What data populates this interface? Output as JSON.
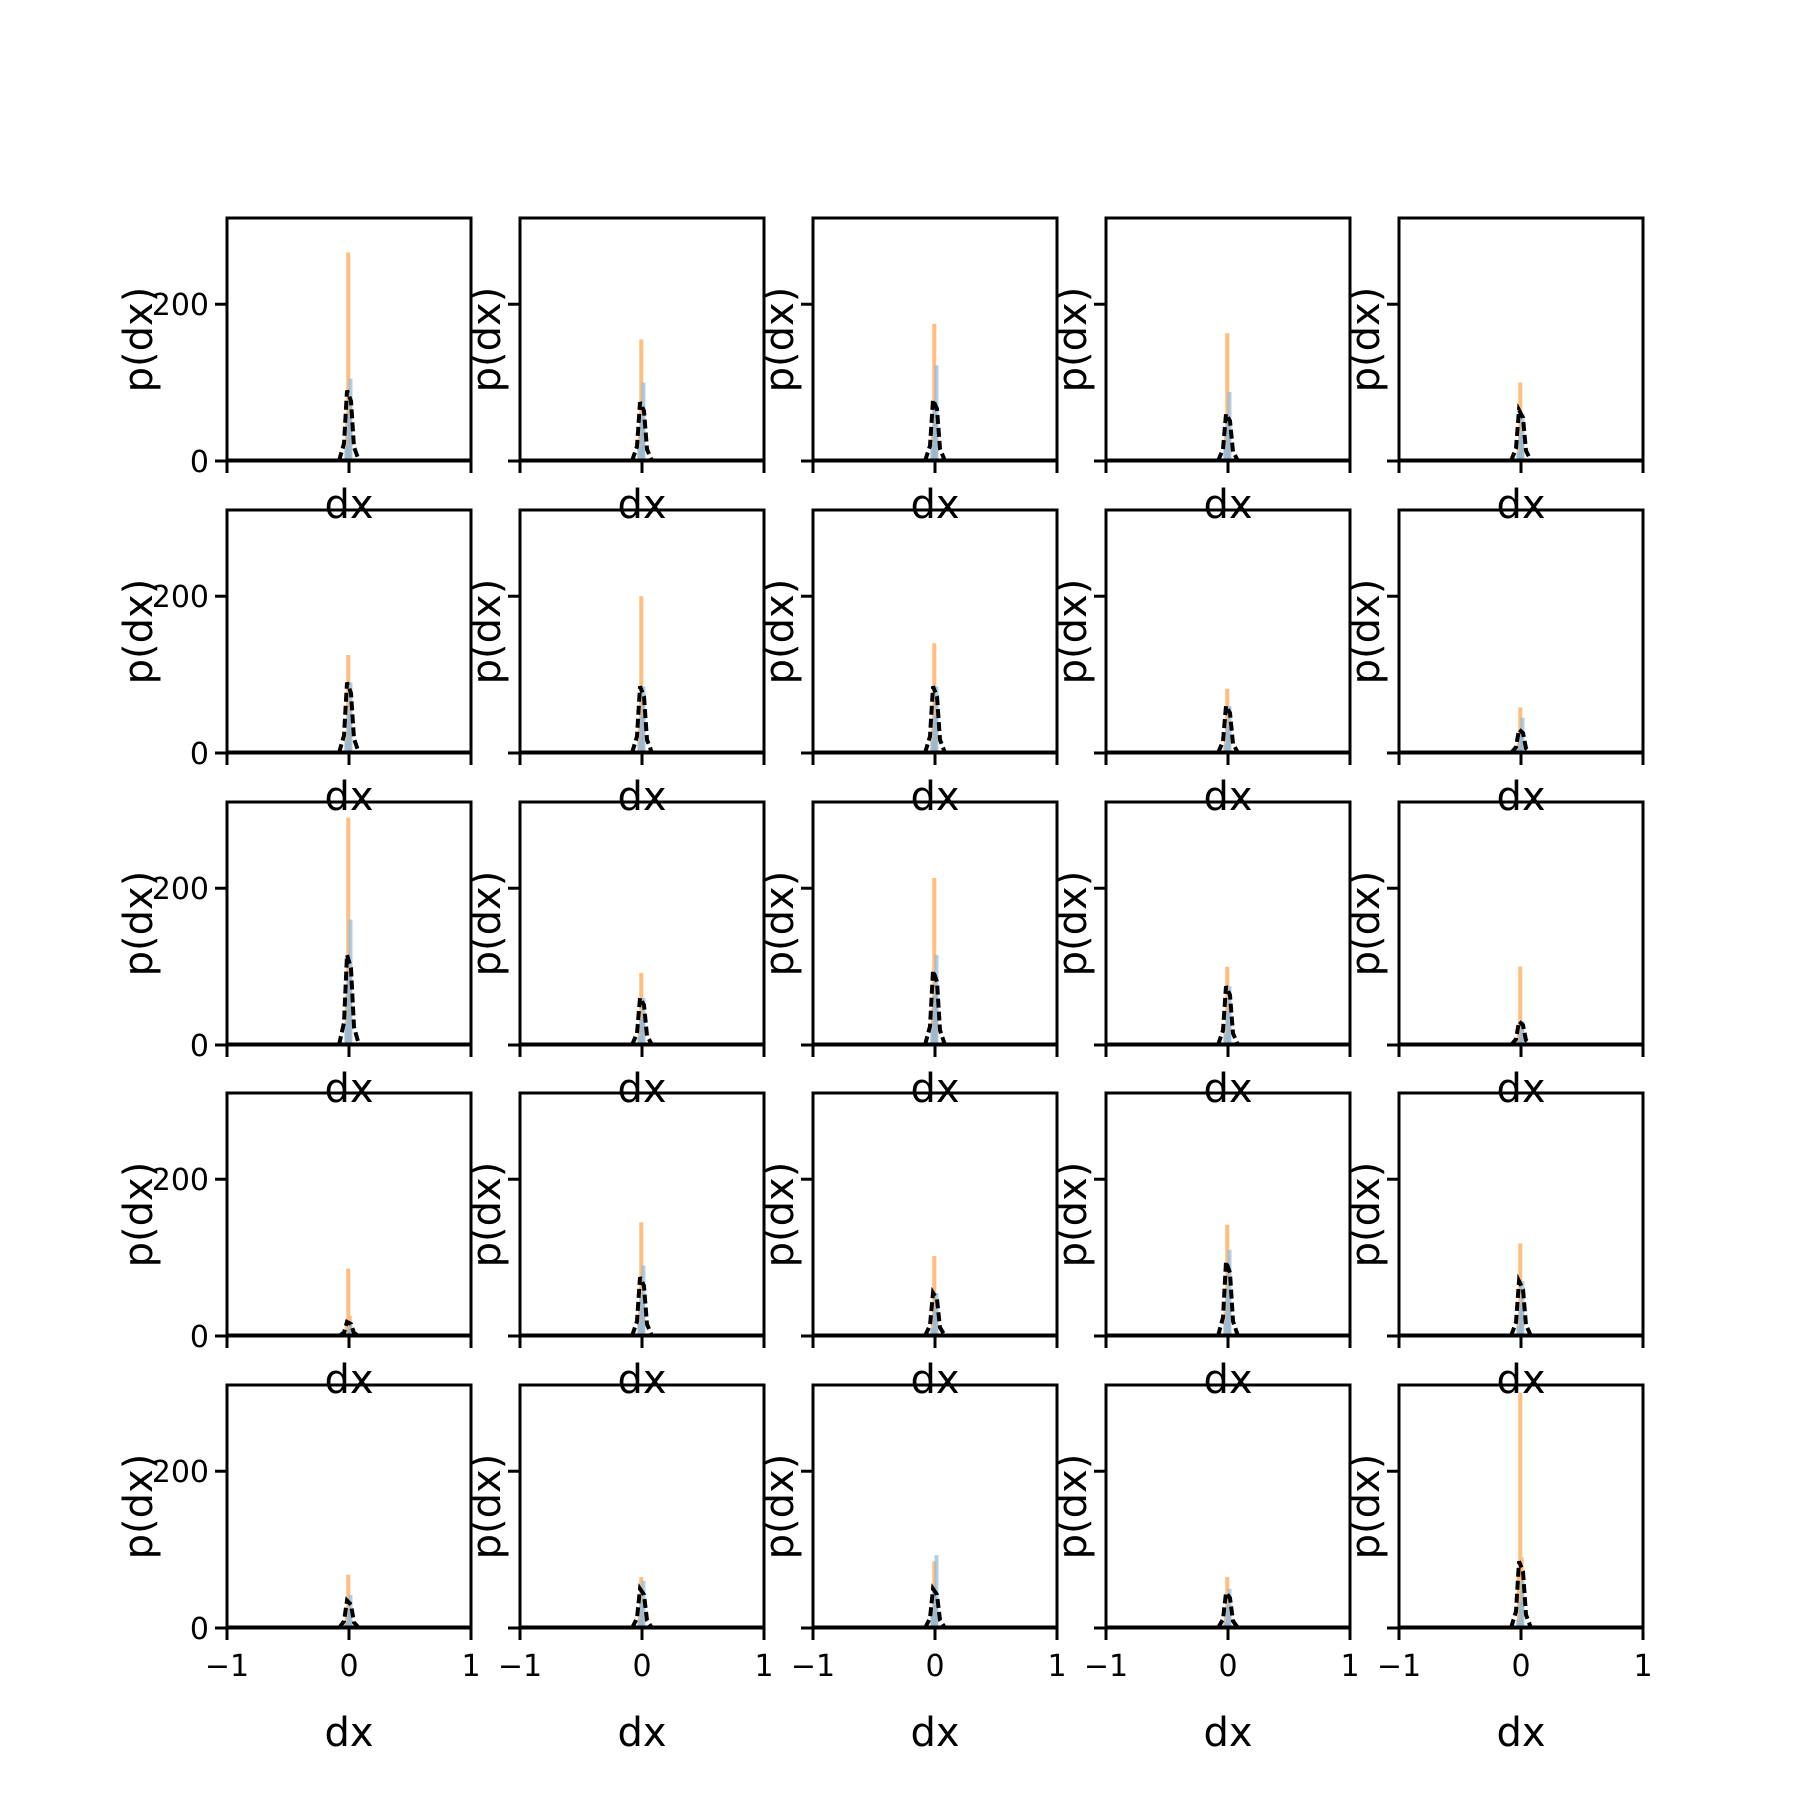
{
  "chart_data": {
    "type": "bar",
    "layout": "5x5 grid of small histograms (shared axes)",
    "xlabel": "dx",
    "ylabel": "p(dx)",
    "xlim": [
      -1,
      1
    ],
    "ylim": [
      0,
      310
    ],
    "x_ticks": [
      -1,
      0,
      1
    ],
    "x_tick_labels": [
      "−1",
      "0",
      "1"
    ],
    "y_ticks": [
      0,
      200
    ],
    "y_tick_labels": [
      "0",
      "200"
    ],
    "grid": false,
    "legend": "none",
    "colors": {
      "series_orange": "#ffbb78",
      "series_blue": "#8fb9dc",
      "reference_line": "#000000"
    },
    "panels": [
      {
        "peak_orange": 266,
        "peak_blue": 105,
        "peak_black": 90
      },
      {
        "peak_orange": 155,
        "peak_blue": 100,
        "peak_black": 75
      },
      {
        "peak_orange": 175,
        "peak_blue": 122,
        "peak_black": 78
      },
      {
        "peak_orange": 163,
        "peak_blue": 88,
        "peak_black": 60
      },
      {
        "peak_orange": 100,
        "peak_blue": 60,
        "peak_black": 65
      },
      {
        "peak_orange": 125,
        "peak_blue": 90,
        "peak_black": 90
      },
      {
        "peak_orange": 200,
        "peak_blue": 85,
        "peak_black": 85
      },
      {
        "peak_orange": 140,
        "peak_blue": 85,
        "peak_black": 85
      },
      {
        "peak_orange": 82,
        "peak_blue": 60,
        "peak_black": 60
      },
      {
        "peak_orange": 58,
        "peak_blue": 45,
        "peak_black": 30
      },
      {
        "peak_orange": 290,
        "peak_blue": 160,
        "peak_black": 115
      },
      {
        "peak_orange": 92,
        "peak_blue": 60,
        "peak_black": 60
      },
      {
        "peak_orange": 213,
        "peak_blue": 115,
        "peak_black": 95
      },
      {
        "peak_orange": 100,
        "peak_blue": 75,
        "peak_black": 75
      },
      {
        "peak_orange": 100,
        "peak_blue": 30,
        "peak_black": 30
      },
      {
        "peak_orange": 86,
        "peak_blue": 15,
        "peak_black": 18
      },
      {
        "peak_orange": 145,
        "peak_blue": 90,
        "peak_black": 75
      },
      {
        "peak_orange": 102,
        "peak_blue": 55,
        "peak_black": 55
      },
      {
        "peak_orange": 142,
        "peak_blue": 110,
        "peak_black": 95
      },
      {
        "peak_orange": 118,
        "peak_blue": 70,
        "peak_black": 70
      },
      {
        "peak_orange": 68,
        "peak_blue": 42,
        "peak_black": 35
      },
      {
        "peak_orange": 65,
        "peak_blue": 60,
        "peak_black": 50
      },
      {
        "peak_orange": 85,
        "peak_blue": 93,
        "peak_black": 50
      },
      {
        "peak_orange": 65,
        "peak_blue": 50,
        "peak_black": 45
      },
      {
        "peak_orange": 300,
        "peak_blue": 60,
        "peak_black": 85
      }
    ]
  }
}
